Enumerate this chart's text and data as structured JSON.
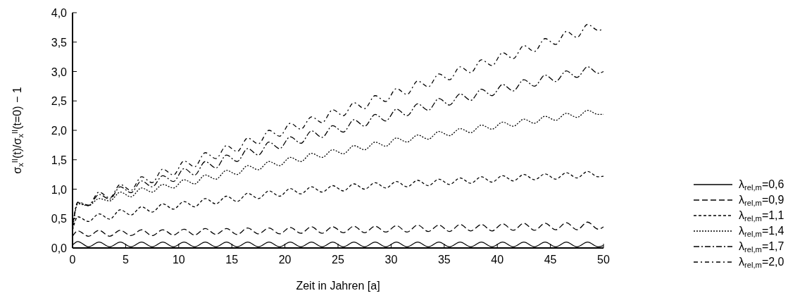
{
  "chart_data": {
    "type": "line",
    "xlabel": "Zeit in Jahren [a]",
    "ylabel": "σ$_{x}$$^{II}$(t)/σ$_{x}$$^{II}$(t=0) − 1",
    "x": [
      0,
      0.5,
      1.5,
      2.5,
      3.5,
      4.5,
      5.5,
      6.5,
      7.5,
      8.5,
      9.5,
      10.5,
      11.5,
      12.5,
      13.5,
      14.5,
      15.5,
      16.5,
      17.5,
      18.5,
      19.5,
      20.5,
      21.5,
      22.5,
      23.5,
      24.5,
      25.5,
      26.5,
      27.5,
      28.5,
      29.5,
      30.5,
      31.5,
      32.5,
      33.5,
      34.5,
      35.5,
      36.5,
      37.5,
      38.5,
      39.5,
      40.5,
      41.5,
      42.5,
      43.5,
      44.5,
      45.5,
      46.5,
      47.5,
      48.5,
      49.5,
      50
    ],
    "xlim": [
      0,
      50
    ],
    "xticks": [
      0,
      5,
      10,
      15,
      20,
      25,
      30,
      35,
      40,
      45,
      50
    ],
    "ylim": [
      0,
      4
    ],
    "yticks": [
      {
        "value": 0,
        "label": "0,0"
      },
      {
        "value": 0.5,
        "label": "0,5"
      },
      {
        "value": 1,
        "label": "1,0"
      },
      {
        "value": 1.5,
        "label": "1,5"
      },
      {
        "value": 2,
        "label": "2,0"
      },
      {
        "value": 2.5,
        "label": "2,5"
      },
      {
        "value": 3,
        "label": "3,0"
      },
      {
        "value": 3.5,
        "label": "3,5"
      },
      {
        "value": 4,
        "label": "4,0"
      }
    ],
    "grid": false,
    "legend": "right",
    "series": [
      {
        "name": "λ$_{rel,m}$=0,6",
        "color": "#000000",
        "line_style": "solid",
        "values": [
          0.05,
          0.11,
          0.02,
          0.1,
          0.02,
          0.1,
          0.02,
          0.1,
          0.02,
          0.1,
          0.02,
          0.1,
          0.02,
          0.1,
          0.02,
          0.1,
          0.02,
          0.1,
          0.02,
          0.1,
          0.02,
          0.1,
          0.02,
          0.1,
          0.02,
          0.1,
          0.02,
          0.1,
          0.02,
          0.1,
          0.02,
          0.1,
          0.02,
          0.1,
          0.02,
          0.1,
          0.02,
          0.1,
          0.02,
          0.1,
          0.02,
          0.1,
          0.02,
          0.1,
          0.02,
          0.1,
          0.02,
          0.1,
          0.02,
          0.1,
          0.02,
          0.04
        ]
      },
      {
        "name": "λ$_{rel,m}$=0,9",
        "color": "#000000",
        "line_style": "dashed",
        "values": [
          0.2,
          0.29,
          0.2,
          0.3,
          0.2,
          0.3,
          0.21,
          0.31,
          0.21,
          0.31,
          0.22,
          0.32,
          0.22,
          0.33,
          0.23,
          0.33,
          0.23,
          0.34,
          0.24,
          0.34,
          0.24,
          0.35,
          0.25,
          0.36,
          0.25,
          0.36,
          0.26,
          0.37,
          0.26,
          0.37,
          0.27,
          0.38,
          0.27,
          0.39,
          0.28,
          0.39,
          0.28,
          0.4,
          0.29,
          0.4,
          0.29,
          0.41,
          0.3,
          0.42,
          0.3,
          0.42,
          0.31,
          0.43,
          0.31,
          0.44,
          0.32,
          0.36
        ]
      },
      {
        "name": "λ$_{rel,m}$=1,1",
        "color": "#000000",
        "line_style": "dashed",
        "values": [
          0.3,
          0.53,
          0.45,
          0.58,
          0.49,
          0.65,
          0.56,
          0.7,
          0.61,
          0.75,
          0.66,
          0.79,
          0.7,
          0.84,
          0.75,
          0.88,
          0.79,
          0.93,
          0.84,
          0.97,
          0.88,
          1.01,
          0.92,
          1.04,
          0.95,
          1.06,
          0.97,
          1.09,
          1.0,
          1.11,
          1.02,
          1.13,
          1.04,
          1.15,
          1.06,
          1.17,
          1.08,
          1.19,
          1.1,
          1.21,
          1.12,
          1.23,
          1.14,
          1.25,
          1.16,
          1.26,
          1.17,
          1.28,
          1.19,
          1.3,
          1.21,
          1.22
        ]
      },
      {
        "name": "λ$_{rel,m}$=1,4",
        "color": "#000000",
        "line_style": "dotted",
        "values": [
          0.3,
          0.75,
          0.72,
          0.84,
          0.8,
          0.95,
          0.87,
          1.02,
          0.95,
          1.08,
          1.02,
          1.16,
          1.09,
          1.24,
          1.17,
          1.32,
          1.25,
          1.4,
          1.33,
          1.47,
          1.4,
          1.54,
          1.47,
          1.61,
          1.54,
          1.67,
          1.6,
          1.74,
          1.67,
          1.8,
          1.73,
          1.87,
          1.8,
          1.92,
          1.85,
          1.98,
          1.91,
          2.03,
          1.96,
          2.09,
          2.02,
          2.14,
          2.07,
          2.19,
          2.12,
          2.24,
          2.17,
          2.29,
          2.22,
          2.34,
          2.27,
          2.27
        ]
      },
      {
        "name": "λ$_{rel,m}$=1,7",
        "color": "#000000",
        "line_style": "dashdot",
        "values": [
          0.35,
          0.77,
          0.72,
          0.91,
          0.83,
          1.04,
          0.94,
          1.14,
          1.04,
          1.23,
          1.13,
          1.35,
          1.24,
          1.47,
          1.36,
          1.58,
          1.47,
          1.69,
          1.58,
          1.8,
          1.69,
          1.89,
          1.78,
          1.99,
          1.88,
          2.08,
          1.97,
          2.18,
          2.07,
          2.27,
          2.16,
          2.36,
          2.25,
          2.45,
          2.34,
          2.54,
          2.43,
          2.62,
          2.51,
          2.7,
          2.59,
          2.78,
          2.67,
          2.86,
          2.75,
          2.94,
          2.83,
          3.01,
          2.9,
          3.08,
          2.97,
          3.0
        ]
      },
      {
        "name": "λ$_{rel,m}$=2,0",
        "color": "#000000",
        "line_style": "dashdot",
        "values": [
          0.35,
          0.78,
          0.73,
          0.95,
          0.85,
          1.08,
          0.98,
          1.21,
          1.11,
          1.34,
          1.24,
          1.48,
          1.38,
          1.62,
          1.52,
          1.74,
          1.64,
          1.87,
          1.77,
          2.0,
          1.9,
          2.12,
          2.02,
          2.23,
          2.13,
          2.35,
          2.25,
          2.47,
          2.37,
          2.59,
          2.49,
          2.71,
          2.61,
          2.84,
          2.74,
          2.96,
          2.86,
          3.08,
          2.98,
          3.2,
          3.1,
          3.32,
          3.22,
          3.44,
          3.34,
          3.56,
          3.46,
          3.68,
          3.58,
          3.8,
          3.7,
          3.72
        ]
      }
    ]
  }
}
